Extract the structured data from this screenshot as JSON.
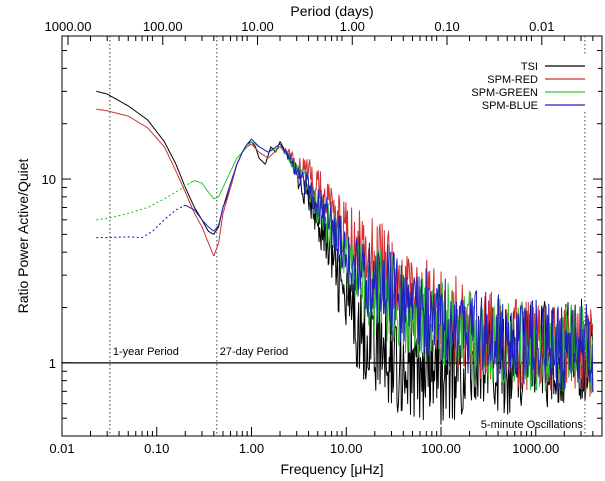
{
  "chart_data": {
    "type": "line",
    "xlabel": "Frequency [μHz]",
    "top_xlabel": "Period (days)",
    "ylabel": "Ratio Power Active/Quiet",
    "x_scale": "log",
    "y_scale": "log",
    "xlim": [
      0.01,
      5000
    ],
    "ylim": [
      0.4,
      60
    ],
    "grid": false,
    "legend_position": "top-right",
    "x_ticks": [
      {
        "value": 0.01,
        "label": "0.01"
      },
      {
        "value": 0.1,
        "label": "0.10"
      },
      {
        "value": 1,
        "label": "1.00"
      },
      {
        "value": 10,
        "label": "10.00"
      },
      {
        "value": 100,
        "label": "100.00"
      },
      {
        "value": 1000,
        "label": "1000.00"
      }
    ],
    "top_ticks": [
      {
        "value": 1000,
        "label": "1000.00"
      },
      {
        "value": 100,
        "label": "100.00"
      },
      {
        "value": 10,
        "label": "10.00"
      },
      {
        "value": 1,
        "label": "1.00"
      },
      {
        "value": 0.1,
        "label": "0.10"
      },
      {
        "value": 0.01,
        "label": "0.01"
      }
    ],
    "y_ticks": [
      {
        "value": 1,
        "label": "1"
      },
      {
        "value": 10,
        "label": "10"
      }
    ],
    "reference_line": {
      "y": 1
    },
    "vertical_markers": [
      {
        "x": 0.032,
        "label": "1-year Period"
      },
      {
        "x": 0.43,
        "label": "27-day Period"
      },
      {
        "x": 3300,
        "label": "5-minute Oscillations"
      }
    ],
    "series": [
      {
        "name": "TSI",
        "color": "#000000",
        "points": [
          [
            0.023,
            30
          ],
          [
            0.03,
            29
          ],
          [
            0.05,
            25
          ],
          [
            0.08,
            21
          ],
          [
            0.12,
            16
          ],
          [
            0.16,
            12
          ],
          [
            0.2,
            9
          ],
          [
            0.25,
            7
          ],
          [
            0.3,
            6
          ],
          [
            0.35,
            5.2
          ],
          [
            0.4,
            5
          ],
          [
            0.45,
            5.5
          ],
          [
            0.5,
            7
          ],
          [
            0.6,
            9
          ],
          [
            0.7,
            12
          ],
          [
            0.8,
            14
          ],
          [
            0.9,
            15.5
          ],
          [
            1.0,
            16
          ],
          [
            1.1,
            15
          ],
          [
            1.2,
            13
          ],
          [
            1.4,
            12
          ],
          [
            1.6,
            15
          ],
          [
            1.8,
            14
          ],
          [
            2.0,
            16
          ],
          [
            2.5,
            13
          ],
          [
            3,
            10
          ],
          [
            4,
            8
          ],
          [
            5,
            6
          ],
          [
            6,
            5
          ],
          [
            8,
            3
          ],
          [
            10,
            2
          ],
          [
            15,
            1.5
          ],
          [
            20,
            1.3
          ],
          [
            30,
            1.1
          ],
          [
            50,
            0.9
          ],
          [
            80,
            0.85
          ],
          [
            100,
            0.9
          ],
          [
            200,
            1.0
          ],
          [
            500,
            1.05
          ],
          [
            1000,
            1.1
          ],
          [
            2000,
            1.12
          ],
          [
            4000,
            1.1
          ]
        ],
        "dashed_until": 0,
        "noise": 0.55
      },
      {
        "name": "SPM-RED",
        "color": "#d03030",
        "points": [
          [
            0.023,
            24
          ],
          [
            0.03,
            23.5
          ],
          [
            0.05,
            22
          ],
          [
            0.08,
            19
          ],
          [
            0.12,
            15
          ],
          [
            0.16,
            11
          ],
          [
            0.2,
            8.5
          ],
          [
            0.25,
            6.5
          ],
          [
            0.3,
            5.5
          ],
          [
            0.35,
            4.5
          ],
          [
            0.4,
            3.8
          ],
          [
            0.45,
            4.5
          ],
          [
            0.5,
            6.5
          ],
          [
            0.6,
            9
          ],
          [
            0.7,
            12
          ],
          [
            0.8,
            14
          ],
          [
            0.9,
            15
          ],
          [
            1.0,
            15.5
          ],
          [
            1.2,
            14
          ],
          [
            1.5,
            13
          ],
          [
            2.0,
            15
          ],
          [
            2.5,
            14
          ],
          [
            3,
            12
          ],
          [
            4,
            11
          ],
          [
            5,
            9
          ],
          [
            6,
            8
          ],
          [
            8,
            6
          ],
          [
            10,
            5
          ],
          [
            15,
            4
          ],
          [
            20,
            3.5
          ],
          [
            30,
            3
          ],
          [
            50,
            2.4
          ],
          [
            80,
            2
          ],
          [
            100,
            1.9
          ],
          [
            200,
            1.5
          ],
          [
            500,
            1.3
          ],
          [
            1000,
            1.2
          ],
          [
            2000,
            1.2
          ],
          [
            4000,
            1.15
          ]
        ],
        "dashed_until": 0,
        "noise": 0.45
      },
      {
        "name": "SPM-GREEN",
        "color": "#30c030",
        "points": [
          [
            0.023,
            6.0
          ],
          [
            0.03,
            6.1
          ],
          [
            0.05,
            6.5
          ],
          [
            0.08,
            7
          ],
          [
            0.12,
            7.8
          ],
          [
            0.16,
            8.5
          ],
          [
            0.2,
            9.2
          ],
          [
            0.25,
            9.8
          ],
          [
            0.3,
            9.5
          ],
          [
            0.35,
            8.5
          ],
          [
            0.4,
            7.8
          ],
          [
            0.45,
            8
          ],
          [
            0.5,
            9
          ],
          [
            0.6,
            11
          ],
          [
            0.7,
            13
          ],
          [
            0.8,
            14
          ],
          [
            0.9,
            15
          ],
          [
            1.0,
            16
          ],
          [
            1.2,
            15
          ],
          [
            1.5,
            14
          ],
          [
            2,
            15
          ],
          [
            2.5,
            13
          ],
          [
            3,
            11
          ],
          [
            4,
            9
          ],
          [
            5,
            7
          ],
          [
            6,
            6
          ],
          [
            8,
            4.5
          ],
          [
            10,
            3.5
          ],
          [
            15,
            2.8
          ],
          [
            20,
            2.5
          ],
          [
            30,
            2.2
          ],
          [
            50,
            1.9
          ],
          [
            80,
            1.7
          ],
          [
            100,
            1.6
          ],
          [
            200,
            1.4
          ],
          [
            500,
            1.25
          ],
          [
            1000,
            1.2
          ],
          [
            2000,
            1.18
          ],
          [
            4000,
            1.15
          ]
        ],
        "dashed_until": 0.22,
        "noise": 0.45
      },
      {
        "name": "SPM-BLUE",
        "color": "#2020c0",
        "points": [
          [
            0.023,
            4.8
          ],
          [
            0.03,
            4.8
          ],
          [
            0.05,
            4.85
          ],
          [
            0.07,
            4.8
          ],
          [
            0.09,
            5.2
          ],
          [
            0.12,
            6
          ],
          [
            0.16,
            6.8
          ],
          [
            0.2,
            7.2
          ],
          [
            0.25,
            6.8
          ],
          [
            0.3,
            6
          ],
          [
            0.35,
            5.5
          ],
          [
            0.4,
            5.2
          ],
          [
            0.45,
            5.6
          ],
          [
            0.5,
            7
          ],
          [
            0.6,
            9.5
          ],
          [
            0.7,
            12
          ],
          [
            0.8,
            14
          ],
          [
            0.9,
            15.5
          ],
          [
            1.0,
            16.5
          ],
          [
            1.2,
            15
          ],
          [
            1.5,
            14
          ],
          [
            2,
            15.5
          ],
          [
            2.5,
            13
          ],
          [
            3,
            11
          ],
          [
            4,
            9
          ],
          [
            5,
            7.5
          ],
          [
            6,
            6.5
          ],
          [
            8,
            5
          ],
          [
            10,
            4
          ],
          [
            15,
            3.2
          ],
          [
            20,
            2.8
          ],
          [
            30,
            2.4
          ],
          [
            50,
            2.0
          ],
          [
            80,
            1.8
          ],
          [
            100,
            1.7
          ],
          [
            200,
            1.5
          ],
          [
            500,
            1.3
          ],
          [
            1000,
            1.25
          ],
          [
            2000,
            1.22
          ],
          [
            4000,
            1.2
          ]
        ],
        "dashed_until": 0.19,
        "noise": 0.45
      }
    ]
  }
}
